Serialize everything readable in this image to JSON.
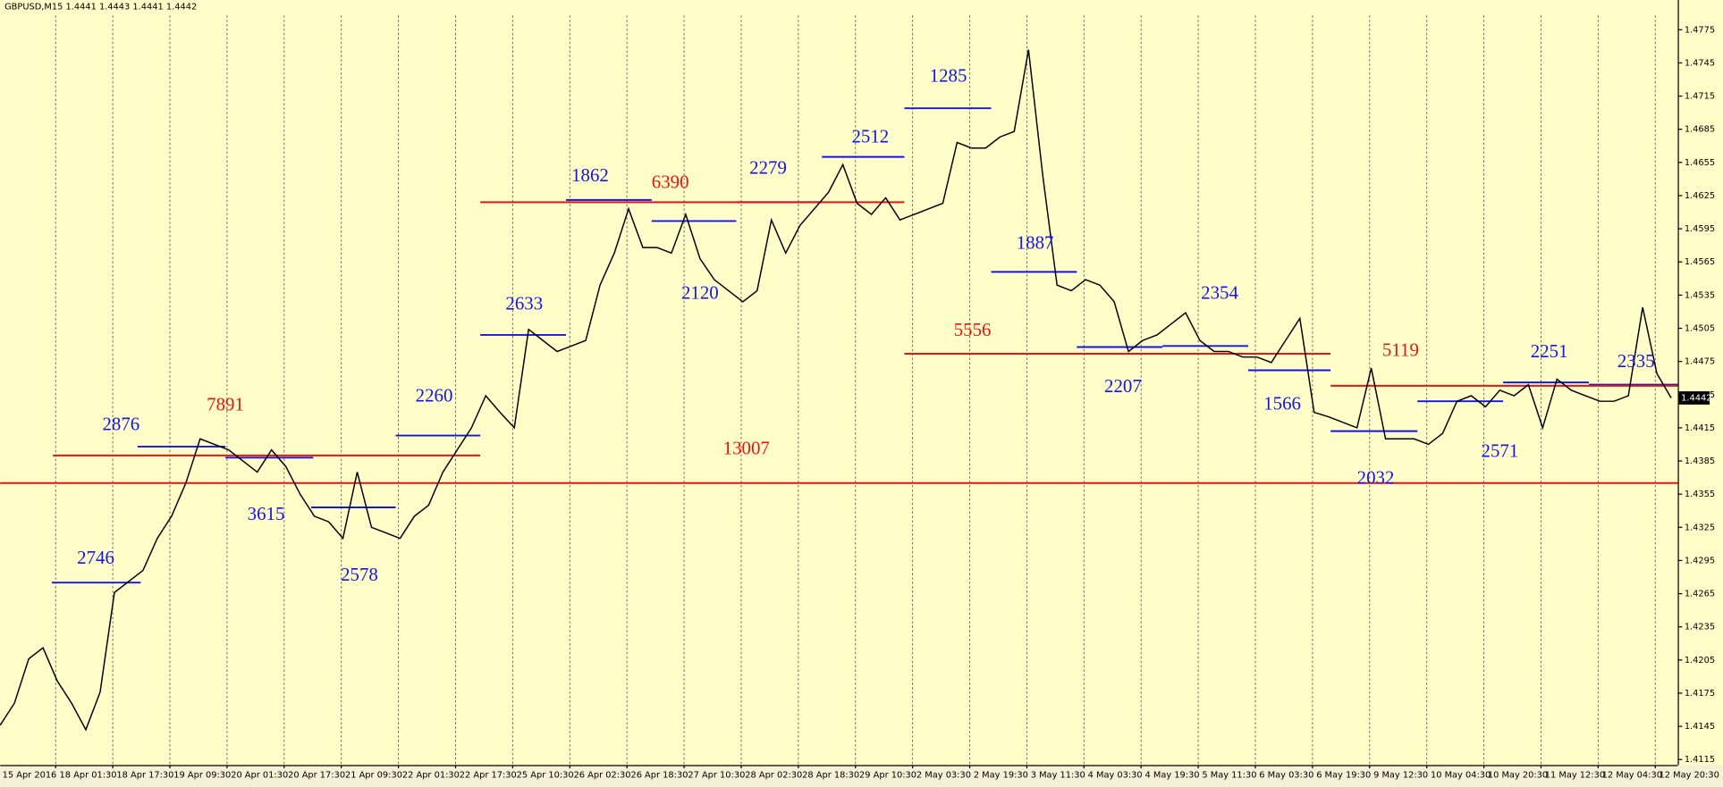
{
  "chart_data": {
    "type": "line",
    "title": "GBPUSD,M15  1.4441 1.4443 1.4441 1.4442",
    "color": "#000000",
    "categories": [
      "15 Apr 2016",
      null,
      null,
      null,
      "18 Apr 01:30",
      null,
      null,
      null,
      "18 Apr 17:30",
      null,
      null,
      null,
      "19 Apr 09:30",
      null,
      null,
      null,
      "20 Apr 01:30",
      null,
      null,
      null,
      "20 Apr 17:30",
      null,
      null,
      null,
      "21 Apr 09:30",
      null,
      null,
      null,
      "22 Apr 01:30",
      null,
      null,
      null,
      "22 Apr 17:30",
      null,
      null,
      null,
      "25 Apr 10:30",
      null,
      null,
      null,
      "26 Apr 02:30",
      null,
      null,
      null,
      "26 Apr 18:30",
      null,
      null,
      null,
      "27 Apr 10:30",
      null,
      null,
      null,
      "28 Apr 02:30",
      null,
      null,
      null,
      "28 Apr 18:30",
      null,
      null,
      null,
      "29 Apr 10:30",
      null,
      null,
      null,
      "2 May 03:30",
      null,
      null,
      null,
      "2 May 19:30",
      null,
      null,
      null,
      "3 May 11:30",
      null,
      null,
      null,
      "4 May 03:30",
      null,
      null,
      null,
      "4 May 19:30",
      null,
      null,
      null,
      "5 May 11:30",
      null,
      null,
      null,
      "6 May 03:30",
      null,
      null,
      null,
      "6 May 19:30",
      null,
      null,
      null,
      "9 May 12:30",
      null,
      null,
      null,
      "10 May 04:30",
      null,
      null,
      null,
      "10 May 20:30",
      null,
      null,
      null,
      "11 May 12:30",
      null,
      null,
      null,
      "12 May 04:30",
      null,
      null,
      null,
      "12 May 20:30",
      null
    ],
    "values": [
      1.4146,
      1.4166,
      1.4206,
      1.4216,
      1.4186,
      1.4166,
      1.4142,
      1.4176,
      1.4266,
      1.4276,
      1.4286,
      1.4315,
      1.4335,
      1.4365,
      1.4405,
      1.44,
      1.4395,
      1.4385,
      1.4375,
      1.4395,
      1.438,
      1.4355,
      1.4335,
      1.433,
      1.4315,
      1.4375,
      1.4325,
      1.432,
      1.4315,
      1.4335,
      1.4345,
      1.4375,
      1.4395,
      1.4415,
      1.4444,
      1.4429,
      1.4415,
      1.4504,
      1.4494,
      1.4484,
      1.4489,
      1.4494,
      1.4544,
      1.4573,
      1.4613,
      1.4578,
      1.4578,
      1.4573,
      1.4608,
      1.4568,
      1.4549,
      1.4539,
      1.4529,
      1.4539,
      1.4603,
      1.4573,
      1.4598,
      1.4613,
      1.4628,
      1.4653,
      1.4618,
      1.4608,
      1.4623,
      1.4603,
      1.4608,
      1.4613,
      1.4618,
      1.4673,
      1.4668,
      1.4668,
      1.4678,
      1.4683,
      1.4757,
      1.4643,
      1.4544,
      1.4539,
      1.4549,
      1.4544,
      1.4529,
      1.4484,
      1.4494,
      1.4499,
      1.4509,
      1.4519,
      1.4494,
      1.4484,
      1.4484,
      1.4479,
      1.4479,
      1.4474,
      1.4494,
      1.4514,
      1.4429,
      1.4425,
      1.442,
      1.4415,
      1.4469,
      1.4405,
      1.4405,
      1.4405,
      1.44,
      1.441,
      1.4439,
      1.4444,
      1.4434,
      1.4449,
      1.4444,
      1.4454,
      1.4415,
      1.4459,
      1.4449,
      1.4444,
      1.4439,
      1.4439,
      1.4444,
      1.4524,
      1.4464,
      1.4442
    ],
    "current_price": 1.4442,
    "ylim": [
      1.411,
      1.4788
    ],
    "yticks": [
      1.4775,
      1.4745,
      1.4715,
      1.4685,
      1.4655,
      1.4625,
      1.4595,
      1.4565,
      1.4535,
      1.4505,
      1.4475,
      1.4445,
      1.4415,
      1.4385,
      1.4355,
      1.4325,
      1.4295,
      1.4265,
      1.4235,
      1.4205,
      1.4175,
      1.4145,
      1.4115
    ],
    "grid": "x",
    "annotations": [
      {
        "text": "2746",
        "level": 1.4275,
        "color": "#1414e6"
      },
      {
        "text": "2876",
        "level": 1.4398,
        "color": "#1414e6"
      },
      {
        "text": "3615",
        "level": 1.4388,
        "color": "#1414e6"
      },
      {
        "text": "2578",
        "level": 1.4343,
        "color": "#1414e6"
      },
      {
        "text": "2260",
        "level": 1.4408,
        "color": "#1414e6"
      },
      {
        "text": "2633",
        "level": 1.4499,
        "color": "#1414e6"
      },
      {
        "text": "1862",
        "level": 1.4621,
        "color": "#1414e6"
      },
      {
        "text": "2120",
        "level": 1.4602,
        "color": "#1414e6"
      },
      {
        "text": "2279",
        "level": 1.4619,
        "color": "#1414e6"
      },
      {
        "text": "2512",
        "level": 1.466,
        "color": "#1414e6"
      },
      {
        "text": "1285",
        "level": 1.4704,
        "color": "#1414e6"
      },
      {
        "text": "1887",
        "level": 1.4556,
        "color": "#1414e6"
      },
      {
        "text": "2207",
        "level": 1.4488,
        "color": "#1414e6"
      },
      {
        "text": "2354",
        "level": 1.4489,
        "color": "#1414e6"
      },
      {
        "text": "1566",
        "level": 1.4467,
        "color": "#1414e6"
      },
      {
        "text": "2032",
        "level": 1.4412,
        "color": "#1414e6"
      },
      {
        "text": "2571",
        "level": 1.4439,
        "color": "#1414e6"
      },
      {
        "text": "2251",
        "level": 1.4456,
        "color": "#1414e6"
      },
      {
        "text": "2335",
        "level": 1.4454,
        "color": "#1414e6"
      },
      {
        "text": "7891",
        "level": 1.439,
        "color": "#e61414"
      },
      {
        "text": "6390",
        "level": 1.4619,
        "color": "#e61414"
      },
      {
        "text": "5556",
        "level": 1.4482,
        "color": "#e61414"
      },
      {
        "text": "5119",
        "level": 1.4453,
        "color": "#e61414"
      },
      {
        "text": "13007",
        "level": 1.4365,
        "color": "#e61414"
      }
    ]
  }
}
